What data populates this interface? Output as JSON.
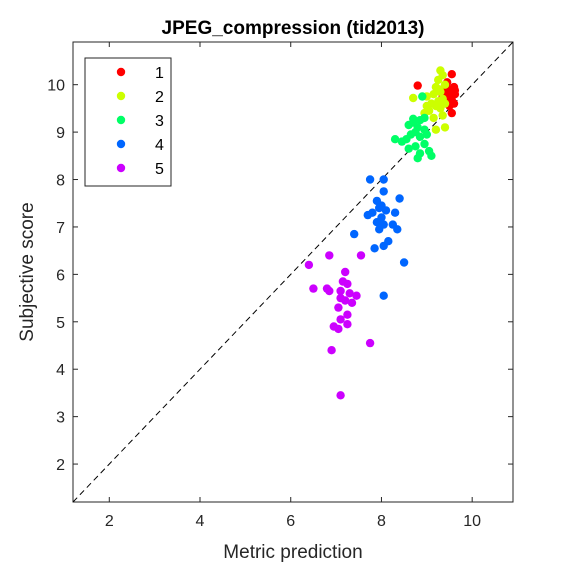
{
  "chart_data": {
    "type": "scatter",
    "title": "JPEG_compression (tid2013)",
    "xlabel": "Metric prediction",
    "ylabel": "Subjective score",
    "xlim": [
      1.2,
      10.9
    ],
    "ylim": [
      1.2,
      10.9
    ],
    "xticks": [
      2,
      4,
      6,
      8,
      10
    ],
    "yticks": [
      2,
      3,
      4,
      5,
      6,
      7,
      8,
      9,
      10
    ],
    "grid": false,
    "legend_position": "top-left",
    "reference_line": "y = x",
    "series": [
      {
        "name": "1",
        "color": "#ff0000",
        "points": [
          [
            9.55,
            10.22
          ],
          [
            9.45,
            10.05
          ],
          [
            9.6,
            9.95
          ],
          [
            9.5,
            9.9
          ],
          [
            9.4,
            9.85
          ],
          [
            9.55,
            9.82
          ],
          [
            9.62,
            9.8
          ],
          [
            9.48,
            9.75
          ],
          [
            9.4,
            9.7
          ],
          [
            9.55,
            9.68
          ],
          [
            9.6,
            9.6
          ],
          [
            9.5,
            9.55
          ],
          [
            9.45,
            9.6
          ],
          [
            9.35,
            9.75
          ],
          [
            9.62,
            9.88
          ],
          [
            8.8,
            9.98
          ],
          [
            9.55,
            9.4
          ]
        ]
      },
      {
        "name": "2",
        "color": "#ccff00",
        "points": [
          [
            9.3,
            10.3
          ],
          [
            9.35,
            10.2
          ],
          [
            9.25,
            10.1
          ],
          [
            9.4,
            10.0
          ],
          [
            9.2,
            9.95
          ],
          [
            9.3,
            9.85
          ],
          [
            9.15,
            9.8
          ],
          [
            9.0,
            9.75
          ],
          [
            8.7,
            9.72
          ],
          [
            9.35,
            9.7
          ],
          [
            9.25,
            9.65
          ],
          [
            9.1,
            9.6
          ],
          [
            9.4,
            9.6
          ],
          [
            9.2,
            9.55
          ],
          [
            9.3,
            9.5
          ],
          [
            9.05,
            9.45
          ],
          [
            8.95,
            9.4
          ],
          [
            9.35,
            9.35
          ],
          [
            9.15,
            9.3
          ],
          [
            9.4,
            9.1
          ],
          [
            9.2,
            9.05
          ],
          [
            9.0,
            9.55
          ],
          [
            9.28,
            9.9
          ]
        ]
      },
      {
        "name": "3",
        "color": "#00ff66",
        "points": [
          [
            8.9,
            9.75
          ],
          [
            8.95,
            9.3
          ],
          [
            8.85,
            9.25
          ],
          [
            8.7,
            9.2
          ],
          [
            8.6,
            9.15
          ],
          [
            8.8,
            9.1
          ],
          [
            8.95,
            9.05
          ],
          [
            8.75,
            9.0
          ],
          [
            8.65,
            8.95
          ],
          [
            9.0,
            8.95
          ],
          [
            8.85,
            8.9
          ],
          [
            8.55,
            8.85
          ],
          [
            8.3,
            8.85
          ],
          [
            8.45,
            8.8
          ],
          [
            8.95,
            8.75
          ],
          [
            8.75,
            8.7
          ],
          [
            8.6,
            8.65
          ],
          [
            9.05,
            8.6
          ],
          [
            8.85,
            8.55
          ],
          [
            9.1,
            8.5
          ],
          [
            8.8,
            8.45
          ],
          [
            8.7,
            9.28
          ]
        ]
      },
      {
        "name": "4",
        "color": "#0066ff",
        "points": [
          [
            7.75,
            8.0
          ],
          [
            8.05,
            8.0
          ],
          [
            8.05,
            7.75
          ],
          [
            8.4,
            7.6
          ],
          [
            7.9,
            7.55
          ],
          [
            8.0,
            7.45
          ],
          [
            7.95,
            7.4
          ],
          [
            8.1,
            7.35
          ],
          [
            7.8,
            7.3
          ],
          [
            8.3,
            7.3
          ],
          [
            7.7,
            7.25
          ],
          [
            8.0,
            7.2
          ],
          [
            7.9,
            7.1
          ],
          [
            8.25,
            7.05
          ],
          [
            8.05,
            7.05
          ],
          [
            7.95,
            6.95
          ],
          [
            8.35,
            6.95
          ],
          [
            7.4,
            6.85
          ],
          [
            8.15,
            6.7
          ],
          [
            8.05,
            6.6
          ],
          [
            7.85,
            6.55
          ],
          [
            8.5,
            6.25
          ],
          [
            8.05,
            5.55
          ]
        ]
      },
      {
        "name": "5",
        "color": "#cc00ff",
        "points": [
          [
            6.4,
            6.2
          ],
          [
            6.85,
            6.4
          ],
          [
            7.55,
            6.4
          ],
          [
            7.2,
            6.05
          ],
          [
            7.15,
            5.85
          ],
          [
            7.25,
            5.8
          ],
          [
            6.5,
            5.7
          ],
          [
            6.8,
            5.7
          ],
          [
            6.85,
            5.65
          ],
          [
            7.1,
            5.65
          ],
          [
            7.3,
            5.6
          ],
          [
            7.45,
            5.55
          ],
          [
            7.1,
            5.5
          ],
          [
            7.2,
            5.45
          ],
          [
            7.35,
            5.4
          ],
          [
            7.05,
            5.3
          ],
          [
            7.25,
            5.15
          ],
          [
            7.1,
            5.05
          ],
          [
            7.25,
            4.95
          ],
          [
            6.95,
            4.9
          ],
          [
            7.05,
            4.85
          ],
          [
            7.75,
            4.55
          ],
          [
            6.9,
            4.4
          ],
          [
            7.1,
            3.45
          ]
        ]
      }
    ]
  }
}
